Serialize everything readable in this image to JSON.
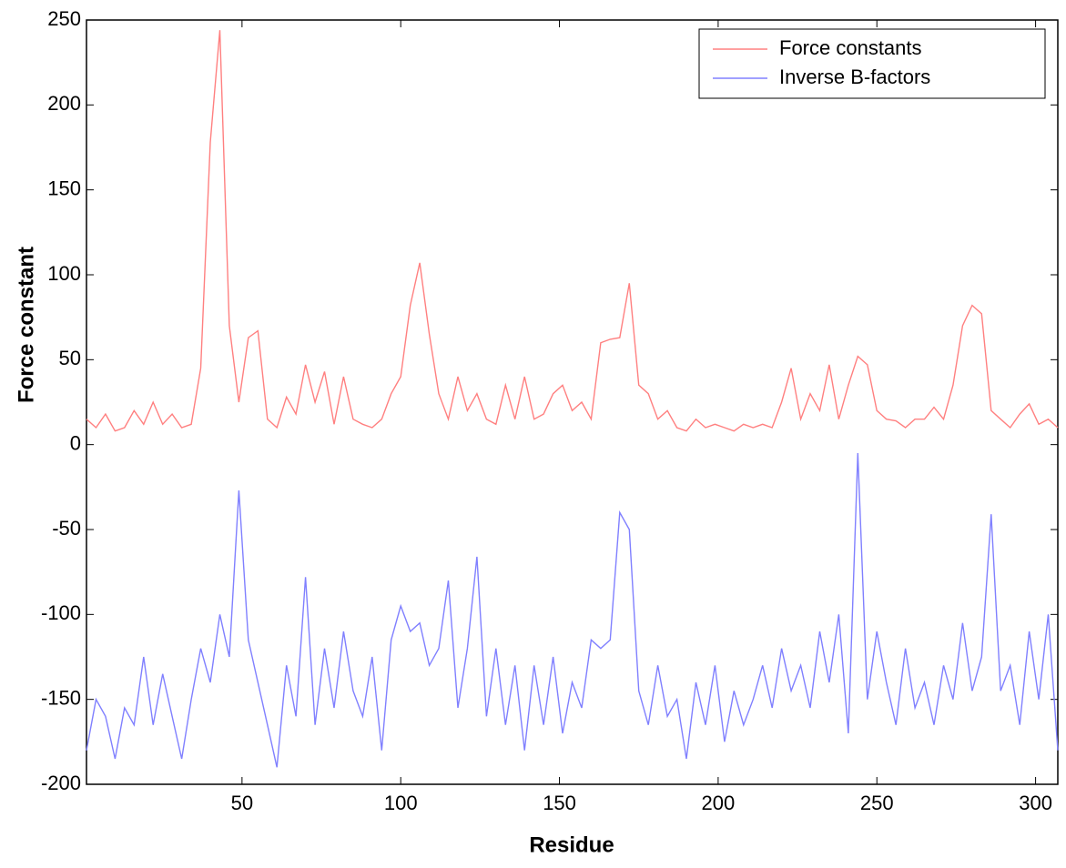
{
  "chart_data": {
    "type": "line",
    "xlabel": "Residue",
    "ylabel": "Force constant",
    "x": [
      1,
      4,
      7,
      10,
      13,
      16,
      19,
      22,
      25,
      28,
      31,
      34,
      37,
      40,
      43,
      46,
      49,
      52,
      55,
      58,
      61,
      64,
      67,
      70,
      73,
      76,
      79,
      82,
      85,
      88,
      91,
      94,
      97,
      100,
      103,
      106,
      109,
      112,
      115,
      118,
      121,
      124,
      127,
      130,
      133,
      136,
      139,
      142,
      145,
      148,
      151,
      154,
      157,
      160,
      163,
      166,
      169,
      172,
      175,
      178,
      181,
      184,
      187,
      190,
      193,
      196,
      199,
      202,
      205,
      208,
      211,
      214,
      217,
      220,
      223,
      226,
      229,
      232,
      235,
      238,
      241,
      244,
      247,
      250,
      253,
      256,
      259,
      262,
      265,
      268,
      271,
      274,
      277,
      280,
      283,
      286,
      289,
      292,
      295,
      298,
      301,
      304,
      307
    ],
    "series": [
      {
        "name": "Force constants",
        "color": "#ff8080",
        "values": [
          15,
          10,
          18,
          8,
          10,
          20,
          12,
          25,
          12,
          18,
          10,
          12,
          45,
          178,
          244,
          70,
          25,
          63,
          67,
          15,
          10,
          28,
          18,
          47,
          25,
          43,
          12,
          40,
          15,
          12,
          10,
          15,
          30,
          40,
          82,
          107,
          65,
          30,
          15,
          40,
          20,
          30,
          15,
          12,
          35,
          15,
          40,
          15,
          18,
          30,
          35,
          20,
          25,
          15,
          60,
          62,
          63,
          95,
          35,
          30,
          15,
          20,
          10,
          8,
          15,
          10,
          12,
          10,
          8,
          12,
          10,
          12,
          10,
          25,
          45,
          15,
          30,
          20,
          47,
          15,
          35,
          52,
          47,
          20,
          15,
          14,
          10,
          15,
          15,
          22,
          15,
          35,
          70,
          82,
          77,
          20,
          15,
          10,
          18,
          24,
          12,
          15,
          10
        ]
      },
      {
        "name": "Inverse B-factors",
        "color": "#8080ff",
        "values": [
          -180,
          -150,
          -160,
          -185,
          -155,
          -165,
          -125,
          -165,
          -135,
          -160,
          -185,
          -150,
          -120,
          -140,
          -100,
          -125,
          -27,
          -115,
          -140,
          -165,
          -190,
          -130,
          -160,
          -78,
          -165,
          -120,
          -155,
          -110,
          -145,
          -160,
          -125,
          -180,
          -115,
          -95,
          -110,
          -105,
          -130,
          -120,
          -80,
          -155,
          -120,
          -66,
          -160,
          -120,
          -165,
          -130,
          -180,
          -130,
          -165,
          -125,
          -170,
          -140,
          -155,
          -115,
          -120,
          -115,
          -40,
          -50,
          -145,
          -165,
          -130,
          -160,
          -150,
          -185,
          -140,
          -165,
          -130,
          -175,
          -145,
          -165,
          -150,
          -130,
          -155,
          -120,
          -145,
          -130,
          -155,
          -110,
          -140,
          -100,
          -170,
          -5,
          -150,
          -110,
          -140,
          -165,
          -120,
          -155,
          -140,
          -165,
          -130,
          -150,
          -105,
          -145,
          -125,
          -41,
          -145,
          -130,
          -165,
          -110,
          -150,
          -100,
          -180
        ]
      }
    ],
    "xlim": [
      1,
      307
    ],
    "xticks": [
      50,
      100,
      150,
      200,
      250,
      300
    ],
    "ylim": [
      -200,
      250
    ],
    "yticks": [
      -200,
      -150,
      -100,
      -50,
      0,
      50,
      100,
      150,
      200,
      250
    ],
    "legend": "upper right"
  }
}
